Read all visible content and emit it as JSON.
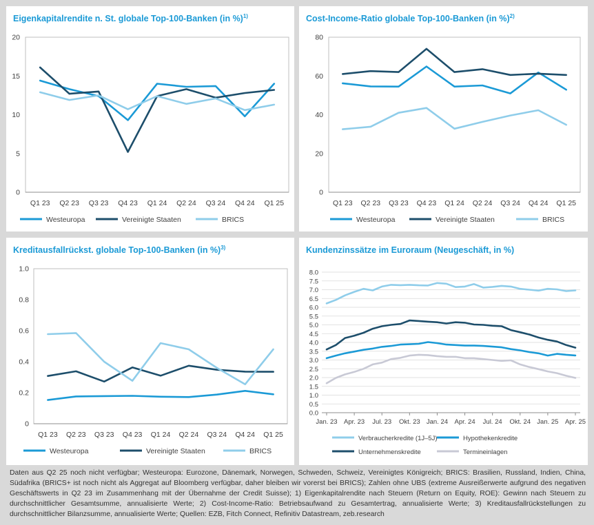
{
  "footnote": "Daten aus Q2 25 noch nicht verfügbar; Westeuropa: Eurozone, Dänemark, Norwegen, Schweden, Schweiz, Vereinigtes Königreich; BRICS: Brasilien, Russland, Indien, China, Südafrika (BRICS+ ist noch nicht als Aggregat auf Bloomberg verfügbar, daher bleiben wir vorerst bei BRICS); Zahlen ohne UBS (extreme Ausreißerwerte aufgrund des negativen Geschäftswerts in Q2 23 im Zusammenhang mit der Übernahme der Credit Suisse); 1) Eigenkapitalrendite nach Steuern (Return on Equity, ROE): Gewinn nach Steuern zu durchschnittlicher Gesamtsumme, annualisierte Werte; 2) Cost-Income-Ratio: Betriebsaufwand zu Gesamtertrag, annualisierte Werte; 3) Kreditausfallrückstellungen zu durchschnittlicher Bilanzsumme, annualisierte Werte; Quellen: EZB, Fitch Connect, Refinitiv Datastream, zeb.research",
  "chart_data": [
    {
      "type": "line",
      "title": "Eigenkapitalrendite n. St. globale Top-100-Banken (in %)",
      "title_sup": "1)",
      "categories": [
        "Q1 23",
        "Q2 23",
        "Q3 23",
        "Q4 23",
        "Q1 24",
        "Q2 24",
        "Q3 24",
        "Q4 24",
        "Q1 25"
      ],
      "ylim": [
        0,
        20
      ],
      "yticks": [
        0,
        5,
        10,
        15,
        20
      ],
      "ytick_labels": [
        "0",
        "5",
        "10",
        "15",
        "20"
      ],
      "series": [
        {
          "name": "Westeuropa",
          "color": "#1b9ad6",
          "values": [
            14.4,
            13.3,
            12.4,
            9.3,
            14.0,
            13.6,
            13.7,
            9.8,
            14.0
          ]
        },
        {
          "name": "Vereinigte Staaten",
          "color": "#1d4e6b",
          "values": [
            16.1,
            12.7,
            13.0,
            5.2,
            12.4,
            13.3,
            12.2,
            12.8,
            13.2
          ]
        },
        {
          "name": "BRICS",
          "color": "#8fcdea",
          "values": [
            12.9,
            11.9,
            12.5,
            10.7,
            12.4,
            11.4,
            12.1,
            10.6,
            11.3
          ]
        }
      ]
    },
    {
      "type": "line",
      "title": "Cost-Income-Ratio globale Top-100-Banken (in %)",
      "title_sup": "2)",
      "categories": [
        "Q1 23",
        "Q2 23",
        "Q3 23",
        "Q4 23",
        "Q1 24",
        "Q2 24",
        "Q3 24",
        "Q4 24",
        "Q1 25"
      ],
      "ylim": [
        0,
        80
      ],
      "yticks": [
        0,
        20,
        40,
        60,
        80
      ],
      "ytick_labels": [
        "0",
        "20",
        "40",
        "60",
        "80"
      ],
      "series": [
        {
          "name": "Westeuropa",
          "color": "#1b9ad6",
          "values": [
            56.2,
            54.6,
            54.5,
            64.9,
            54.5,
            55.1,
            51.0,
            61.8,
            52.9
          ]
        },
        {
          "name": "Vereinigte Staaten",
          "color": "#1d4e6b",
          "values": [
            61.0,
            62.5,
            62.0,
            74.0,
            62.0,
            63.5,
            60.5,
            61.2,
            60.5
          ]
        },
        {
          "name": "BRICS",
          "color": "#8fcdea",
          "values": [
            32.5,
            33.8,
            41.0,
            43.5,
            32.8,
            36.3,
            39.6,
            42.3,
            34.8
          ]
        }
      ]
    },
    {
      "type": "line",
      "title": "Kreditausfallrückst. globale Top-100-Banken (in %)",
      "title_sup": "3)",
      "categories": [
        "Q1 23",
        "Q2 23",
        "Q3 23",
        "Q4 23",
        "Q1 24",
        "Q2 24",
        "Q3 24",
        "Q4 24",
        "Q1 25"
      ],
      "ylim": [
        0,
        1.0
      ],
      "yticks": [
        0,
        0.2,
        0.4,
        0.6,
        0.8,
        1.0
      ],
      "ytick_labels": [
        "0",
        "0.2",
        "0.4",
        "0.6",
        "0.8",
        "1.0"
      ],
      "series": [
        {
          "name": "Westeuropa",
          "color": "#1b9ad6",
          "values": [
            0.153,
            0.176,
            0.178,
            0.18,
            0.174,
            0.172,
            0.188,
            0.212,
            0.19
          ]
        },
        {
          "name": "Vereinigte Staaten",
          "color": "#1d4e6b",
          "values": [
            0.308,
            0.338,
            0.272,
            0.363,
            0.31,
            0.374,
            0.348,
            0.336,
            0.335
          ]
        },
        {
          "name": "BRICS",
          "color": "#8fcdea",
          "values": [
            0.578,
            0.585,
            0.4,
            0.277,
            0.52,
            0.48,
            0.36,
            0.254,
            0.48
          ]
        }
      ]
    },
    {
      "type": "line",
      "title": "Kundenzinssätze im Euroraum (Neugeschäft, in %)",
      "title_sup": "",
      "categories": [
        "Jan. 23",
        "Feb. 23",
        "Mär. 23",
        "Apr. 23",
        "Mai 23",
        "Jun. 23",
        "Jul. 23",
        "Aug. 23",
        "Sep. 23",
        "Okt. 23",
        "Nov. 23",
        "Dez. 23",
        "Jan. 24",
        "Feb. 24",
        "Mär. 24",
        "Apr. 24",
        "Mai 24",
        "Jun. 24",
        "Jul. 24",
        "Aug. 24",
        "Sep. 24",
        "Okt. 24",
        "Nov. 24",
        "Dez. 24",
        "Jan. 25",
        "Feb. 25",
        "Mär. 25",
        "Apr. 25"
      ],
      "xtick_labels": [
        "Jan. 23",
        "Apr. 23",
        "Jul. 23",
        "Okt. 23",
        "Jan. 24",
        "Apr. 24",
        "Jul. 24",
        "Okt. 24",
        "Jan. 25",
        "Apr. 25"
      ],
      "ylim": [
        0,
        8.0
      ],
      "yticks": [
        0,
        0.5,
        1.0,
        1.5,
        2.0,
        2.5,
        3.0,
        3.5,
        4.0,
        4.5,
        5.0,
        5.5,
        6.0,
        6.5,
        7.0,
        7.5,
        8.0
      ],
      "ytick_labels": [
        "0.0",
        "0.5",
        "1.0",
        "1.5",
        "2.0",
        "2.5",
        "3.0",
        "3.5",
        "4.0",
        "4.5",
        "5.0",
        "5.5",
        "6.0",
        "6.5",
        "7.0",
        "7.5",
        "8.0"
      ],
      "legend_layout": "2x2",
      "series": [
        {
          "name": "Verbraucherkredite (1J–5J)",
          "color": "#8fcdea",
          "values": [
            6.22,
            6.42,
            6.68,
            6.88,
            7.05,
            6.96,
            7.18,
            7.28,
            7.26,
            7.28,
            7.25,
            7.24,
            7.38,
            7.34,
            7.15,
            7.18,
            7.32,
            7.12,
            7.16,
            7.22,
            7.18,
            7.05,
            7.0,
            6.95,
            7.05,
            7.02,
            6.92,
            6.96
          ]
        },
        {
          "name": "Hypothekenkredite",
          "color": "#1b9ad6",
          "values": [
            3.1,
            3.25,
            3.38,
            3.48,
            3.58,
            3.65,
            3.75,
            3.8,
            3.88,
            3.9,
            3.92,
            4.02,
            3.96,
            3.88,
            3.85,
            3.82,
            3.82,
            3.8,
            3.76,
            3.72,
            3.62,
            3.55,
            3.45,
            3.38,
            3.25,
            3.35,
            3.3,
            3.26
          ]
        },
        {
          "name": "Unternehmenskredite",
          "color": "#1d4e6b",
          "values": [
            3.6,
            3.85,
            4.25,
            4.38,
            4.55,
            4.78,
            4.92,
            5.0,
            5.05,
            5.25,
            5.22,
            5.18,
            5.15,
            5.08,
            5.15,
            5.12,
            5.02,
            5.0,
            4.95,
            4.92,
            4.7,
            4.58,
            4.45,
            4.28,
            4.15,
            4.05,
            3.85,
            3.7
          ]
        },
        {
          "name": "Termineinlagen",
          "color": "#c8c9d5",
          "values": [
            1.68,
            1.98,
            2.18,
            2.32,
            2.5,
            2.75,
            2.85,
            3.05,
            3.12,
            3.25,
            3.3,
            3.28,
            3.22,
            3.18,
            3.18,
            3.1,
            3.1,
            3.05,
            3.0,
            2.95,
            2.98,
            2.75,
            2.6,
            2.48,
            2.35,
            2.25,
            2.1,
            1.98
          ]
        }
      ]
    }
  ]
}
